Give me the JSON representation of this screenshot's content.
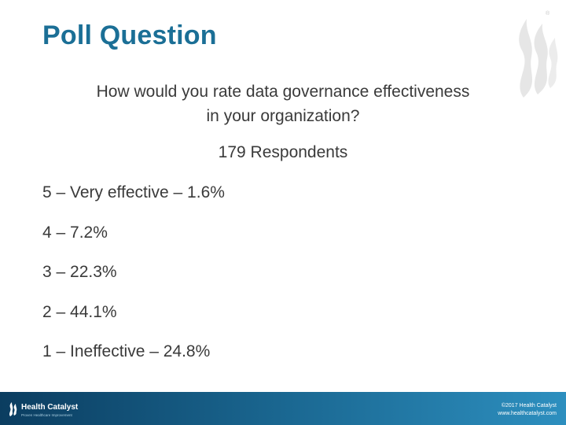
{
  "slide": {
    "title": "Poll Question",
    "question_line1": "How would you rate data governance effectiveness",
    "question_line2": "in your organization?",
    "respondents": "179 Respondents",
    "options": [
      "5 – Very effective – 1.6%",
      "4 – 7.2%",
      "3 – 22.3%",
      "2 – 44.1%",
      "1 – Ineffective – 24.8%"
    ],
    "registered_mark": "®"
  },
  "footer": {
    "brand_name": "Health Catalyst",
    "brand_tagline": "Proven Healthcare Improvement",
    "copyright": "©2017 Health Catalyst",
    "website": "www.healthcatalyst.com"
  },
  "colors": {
    "title": "#1b6f96",
    "body_text": "#3a3a3a",
    "footer_dark": "#0b3d60",
    "footer_light": "#2d8fbf",
    "logo_watermark": "#e6e6e6"
  },
  "icons": {
    "logo_mark": "flame-logo-icon",
    "footer_logo": "flame-logo-small-icon"
  }
}
